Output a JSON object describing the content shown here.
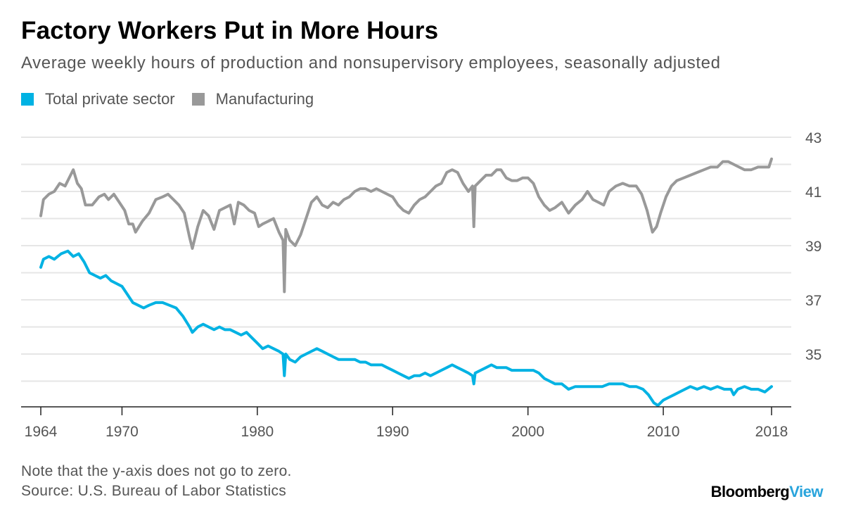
{
  "header": {
    "title": "Factory Workers Put in More Hours",
    "subtitle": "Average weekly hours of production and nonsupervisory employees, seasonally adjusted"
  },
  "legend": [
    {
      "label": "Total private sector",
      "color": "#00b2e3"
    },
    {
      "label": "Manufacturing",
      "color": "#999999"
    }
  ],
  "footer": {
    "note": "Note that the y-axis does not go to zero.",
    "source": "Source: U.S. Bureau of Labor Statistics",
    "brand_main": "Bloomberg",
    "brand_accent": "View"
  },
  "chart_data": {
    "type": "line",
    "title": "Factory Workers Put in More Hours",
    "subtitle": "Average weekly hours of production and nonsupervisory employees, seasonally adjusted",
    "xlim": [
      1964,
      2018
    ],
    "ylim": [
      33.1,
      43.2
    ],
    "x_ticks": [
      1964,
      1970,
      1980,
      1990,
      2000,
      2010,
      2018
    ],
    "y_ticks": [
      35,
      37,
      39,
      41,
      43
    ],
    "y_axis_position": "right",
    "grid": "horizontal",
    "legend_position": "top-left",
    "series": [
      {
        "name": "Total private sector",
        "color": "#00b2e3",
        "points": [
          [
            1964.0,
            38.2
          ],
          [
            1964.2,
            38.5
          ],
          [
            1964.6,
            38.6
          ],
          [
            1965.0,
            38.5
          ],
          [
            1965.5,
            38.7
          ],
          [
            1966.0,
            38.8
          ],
          [
            1966.4,
            38.6
          ],
          [
            1966.8,
            38.7
          ],
          [
            1967.2,
            38.4
          ],
          [
            1967.6,
            38.0
          ],
          [
            1968.0,
            37.9
          ],
          [
            1968.4,
            37.8
          ],
          [
            1968.8,
            37.9
          ],
          [
            1969.2,
            37.7
          ],
          [
            1969.6,
            37.6
          ],
          [
            1970.0,
            37.5
          ],
          [
            1970.4,
            37.2
          ],
          [
            1970.8,
            36.9
          ],
          [
            1971.2,
            36.8
          ],
          [
            1971.6,
            36.7
          ],
          [
            1972.0,
            36.8
          ],
          [
            1972.5,
            36.9
          ],
          [
            1973.0,
            36.9
          ],
          [
            1973.5,
            36.8
          ],
          [
            1974.0,
            36.7
          ],
          [
            1974.5,
            36.4
          ],
          [
            1975.0,
            36.0
          ],
          [
            1975.2,
            35.8
          ],
          [
            1975.6,
            36.0
          ],
          [
            1976.0,
            36.1
          ],
          [
            1976.4,
            36.0
          ],
          [
            1976.8,
            35.9
          ],
          [
            1977.2,
            36.0
          ],
          [
            1977.6,
            35.9
          ],
          [
            1978.0,
            35.9
          ],
          [
            1978.4,
            35.8
          ],
          [
            1978.8,
            35.7
          ],
          [
            1979.2,
            35.8
          ],
          [
            1979.6,
            35.6
          ],
          [
            1980.0,
            35.4
          ],
          [
            1980.4,
            35.2
          ],
          [
            1980.8,
            35.3
          ],
          [
            1981.2,
            35.2
          ],
          [
            1981.6,
            35.1
          ],
          [
            1981.9,
            35.0
          ],
          [
            1982.0,
            34.2
          ],
          [
            1982.1,
            35.0
          ],
          [
            1982.4,
            34.8
          ],
          [
            1982.8,
            34.7
          ],
          [
            1983.2,
            34.9
          ],
          [
            1983.6,
            35.0
          ],
          [
            1984.0,
            35.1
          ],
          [
            1984.4,
            35.2
          ],
          [
            1984.8,
            35.1
          ],
          [
            1985.2,
            35.0
          ],
          [
            1985.6,
            34.9
          ],
          [
            1986.0,
            34.8
          ],
          [
            1986.4,
            34.8
          ],
          [
            1986.8,
            34.8
          ],
          [
            1987.2,
            34.8
          ],
          [
            1987.6,
            34.7
          ],
          [
            1988.0,
            34.7
          ],
          [
            1988.4,
            34.6
          ],
          [
            1988.8,
            34.6
          ],
          [
            1989.2,
            34.6
          ],
          [
            1989.6,
            34.5
          ],
          [
            1990.0,
            34.4
          ],
          [
            1990.4,
            34.3
          ],
          [
            1990.8,
            34.2
          ],
          [
            1991.2,
            34.1
          ],
          [
            1991.6,
            34.2
          ],
          [
            1992.0,
            34.2
          ],
          [
            1992.4,
            34.3
          ],
          [
            1992.8,
            34.2
          ],
          [
            1993.2,
            34.3
          ],
          [
            1993.6,
            34.4
          ],
          [
            1994.0,
            34.5
          ],
          [
            1994.4,
            34.6
          ],
          [
            1994.8,
            34.5
          ],
          [
            1995.2,
            34.4
          ],
          [
            1995.6,
            34.3
          ],
          [
            1995.9,
            34.2
          ],
          [
            1996.0,
            33.9
          ],
          [
            1996.1,
            34.3
          ],
          [
            1996.5,
            34.4
          ],
          [
            1996.9,
            34.5
          ],
          [
            1997.3,
            34.6
          ],
          [
            1997.7,
            34.5
          ],
          [
            1998.0,
            34.5
          ],
          [
            1998.4,
            34.5
          ],
          [
            1998.8,
            34.4
          ],
          [
            1999.2,
            34.4
          ],
          [
            1999.6,
            34.4
          ],
          [
            2000.0,
            34.4
          ],
          [
            2000.4,
            34.4
          ],
          [
            2000.8,
            34.3
          ],
          [
            2001.2,
            34.1
          ],
          [
            2001.6,
            34.0
          ],
          [
            2002.0,
            33.9
          ],
          [
            2002.5,
            33.9
          ],
          [
            2003.0,
            33.7
          ],
          [
            2003.5,
            33.8
          ],
          [
            2004.0,
            33.8
          ],
          [
            2004.5,
            33.8
          ],
          [
            2005.0,
            33.8
          ],
          [
            2005.5,
            33.8
          ],
          [
            2006.0,
            33.9
          ],
          [
            2006.5,
            33.9
          ],
          [
            2007.0,
            33.9
          ],
          [
            2007.5,
            33.8
          ],
          [
            2008.0,
            33.8
          ],
          [
            2008.5,
            33.7
          ],
          [
            2008.9,
            33.5
          ],
          [
            2009.3,
            33.2
          ],
          [
            2009.6,
            33.1
          ],
          [
            2010.0,
            33.3
          ],
          [
            2010.4,
            33.4
          ],
          [
            2010.8,
            33.5
          ],
          [
            2011.2,
            33.6
          ],
          [
            2011.6,
            33.7
          ],
          [
            2012.0,
            33.8
          ],
          [
            2012.5,
            33.7
          ],
          [
            2013.0,
            33.8
          ],
          [
            2013.5,
            33.7
          ],
          [
            2014.0,
            33.8
          ],
          [
            2014.5,
            33.7
          ],
          [
            2015.0,
            33.7
          ],
          [
            2015.2,
            33.5
          ],
          [
            2015.5,
            33.7
          ],
          [
            2016.0,
            33.8
          ],
          [
            2016.5,
            33.7
          ],
          [
            2017.0,
            33.7
          ],
          [
            2017.5,
            33.6
          ],
          [
            2018.0,
            33.8
          ]
        ]
      },
      {
        "name": "Manufacturing",
        "color": "#999999",
        "points": [
          [
            1964.0,
            40.1
          ],
          [
            1964.2,
            40.7
          ],
          [
            1964.6,
            40.9
          ],
          [
            1965.0,
            41.0
          ],
          [
            1965.4,
            41.3
          ],
          [
            1965.8,
            41.2
          ],
          [
            1966.2,
            41.6
          ],
          [
            1966.4,
            41.8
          ],
          [
            1966.7,
            41.3
          ],
          [
            1967.0,
            41.1
          ],
          [
            1967.3,
            40.5
          ],
          [
            1967.8,
            40.5
          ],
          [
            1968.3,
            40.8
          ],
          [
            1968.7,
            40.9
          ],
          [
            1969.0,
            40.7
          ],
          [
            1969.4,
            40.9
          ],
          [
            1969.8,
            40.6
          ],
          [
            1970.2,
            40.3
          ],
          [
            1970.5,
            39.8
          ],
          [
            1970.8,
            39.8
          ],
          [
            1971.0,
            39.5
          ],
          [
            1971.5,
            39.9
          ],
          [
            1972.0,
            40.2
          ],
          [
            1972.5,
            40.7
          ],
          [
            1973.0,
            40.8
          ],
          [
            1973.4,
            40.9
          ],
          [
            1973.8,
            40.7
          ],
          [
            1974.2,
            40.5
          ],
          [
            1974.6,
            40.2
          ],
          [
            1975.0,
            39.3
          ],
          [
            1975.2,
            38.9
          ],
          [
            1975.6,
            39.7
          ],
          [
            1976.0,
            40.3
          ],
          [
            1976.4,
            40.1
          ],
          [
            1976.8,
            39.6
          ],
          [
            1977.2,
            40.3
          ],
          [
            1977.6,
            40.4
          ],
          [
            1978.0,
            40.5
          ],
          [
            1978.3,
            39.8
          ],
          [
            1978.6,
            40.6
          ],
          [
            1979.0,
            40.5
          ],
          [
            1979.4,
            40.3
          ],
          [
            1979.8,
            40.2
          ],
          [
            1980.1,
            39.7
          ],
          [
            1980.4,
            39.8
          ],
          [
            1980.8,
            39.9
          ],
          [
            1981.2,
            40.0
          ],
          [
            1981.6,
            39.5
          ],
          [
            1981.9,
            39.2
          ],
          [
            1982.0,
            37.3
          ],
          [
            1982.1,
            39.6
          ],
          [
            1982.4,
            39.2
          ],
          [
            1982.8,
            39.0
          ],
          [
            1983.2,
            39.4
          ],
          [
            1983.6,
            40.0
          ],
          [
            1984.0,
            40.6
          ],
          [
            1984.4,
            40.8
          ],
          [
            1984.8,
            40.5
          ],
          [
            1985.2,
            40.4
          ],
          [
            1985.6,
            40.6
          ],
          [
            1986.0,
            40.5
          ],
          [
            1986.4,
            40.7
          ],
          [
            1986.8,
            40.8
          ],
          [
            1987.2,
            41.0
          ],
          [
            1987.6,
            41.1
          ],
          [
            1988.0,
            41.1
          ],
          [
            1988.4,
            41.0
          ],
          [
            1988.8,
            41.1
          ],
          [
            1989.2,
            41.0
          ],
          [
            1989.6,
            40.9
          ],
          [
            1990.0,
            40.8
          ],
          [
            1990.4,
            40.5
          ],
          [
            1990.8,
            40.3
          ],
          [
            1991.2,
            40.2
          ],
          [
            1991.6,
            40.5
          ],
          [
            1992.0,
            40.7
          ],
          [
            1992.4,
            40.8
          ],
          [
            1992.8,
            41.0
          ],
          [
            1993.2,
            41.2
          ],
          [
            1993.6,
            41.3
          ],
          [
            1994.0,
            41.7
          ],
          [
            1994.4,
            41.8
          ],
          [
            1994.8,
            41.7
          ],
          [
            1995.2,
            41.3
          ],
          [
            1995.6,
            41.0
          ],
          [
            1995.9,
            41.2
          ],
          [
            1996.0,
            39.7
          ],
          [
            1996.1,
            41.2
          ],
          [
            1996.5,
            41.4
          ],
          [
            1996.9,
            41.6
          ],
          [
            1997.3,
            41.6
          ],
          [
            1997.7,
            41.8
          ],
          [
            1998.0,
            41.8
          ],
          [
            1998.4,
            41.5
          ],
          [
            1998.8,
            41.4
          ],
          [
            1999.2,
            41.4
          ],
          [
            1999.6,
            41.5
          ],
          [
            2000.0,
            41.5
          ],
          [
            2000.4,
            41.3
          ],
          [
            2000.8,
            40.8
          ],
          [
            2001.2,
            40.5
          ],
          [
            2001.6,
            40.3
          ],
          [
            2002.0,
            40.4
          ],
          [
            2002.5,
            40.6
          ],
          [
            2003.0,
            40.2
          ],
          [
            2003.5,
            40.5
          ],
          [
            2004.0,
            40.7
          ],
          [
            2004.4,
            41.0
          ],
          [
            2004.8,
            40.7
          ],
          [
            2005.2,
            40.6
          ],
          [
            2005.6,
            40.5
          ],
          [
            2006.0,
            41.0
          ],
          [
            2006.5,
            41.2
          ],
          [
            2007.0,
            41.3
          ],
          [
            2007.5,
            41.2
          ],
          [
            2008.0,
            41.2
          ],
          [
            2008.4,
            40.9
          ],
          [
            2008.8,
            40.3
          ],
          [
            2009.2,
            39.5
          ],
          [
            2009.5,
            39.7
          ],
          [
            2009.8,
            40.2
          ],
          [
            2010.2,
            40.8
          ],
          [
            2010.6,
            41.2
          ],
          [
            2011.0,
            41.4
          ],
          [
            2011.5,
            41.5
          ],
          [
            2012.0,
            41.6
          ],
          [
            2012.5,
            41.7
          ],
          [
            2013.0,
            41.8
          ],
          [
            2013.5,
            41.9
          ],
          [
            2014.0,
            41.9
          ],
          [
            2014.4,
            42.1
          ],
          [
            2014.8,
            42.1
          ],
          [
            2015.2,
            42.0
          ],
          [
            2015.6,
            41.9
          ],
          [
            2016.0,
            41.8
          ],
          [
            2016.5,
            41.8
          ],
          [
            2017.0,
            41.9
          ],
          [
            2017.5,
            41.9
          ],
          [
            2017.8,
            41.9
          ],
          [
            2018.0,
            42.2
          ]
        ]
      }
    ]
  }
}
